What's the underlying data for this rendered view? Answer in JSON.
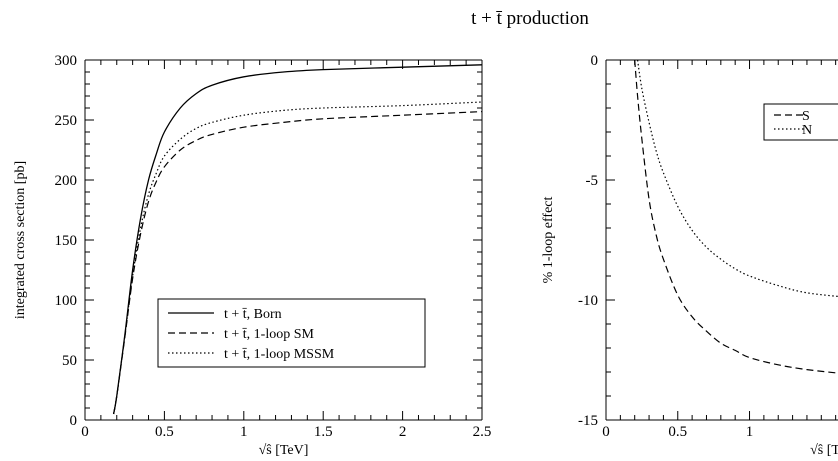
{
  "title": "t + t̄  production",
  "chart_data": [
    {
      "type": "line",
      "xlabel": "√ŝ [TeV]",
      "ylabel": "integrated cross section [pb]",
      "xlim": [
        0,
        2.5
      ],
      "ylim": [
        0,
        300
      ],
      "xticks": [
        "0",
        "0.5",
        "1",
        "1.5",
        "2",
        "2.5"
      ],
      "yticks": [
        "0",
        "50",
        "100",
        "150",
        "200",
        "250",
        "300"
      ],
      "legend_position": "lower-right",
      "series": [
        {
          "name": "t + t̄, Born",
          "style": "solid",
          "x": [
            0.18,
            0.2,
            0.25,
            0.3,
            0.35,
            0.4,
            0.45,
            0.5,
            0.6,
            0.7,
            0.8,
            1.0,
            1.25,
            1.5,
            2.0,
            2.5
          ],
          "y": [
            5,
            20,
            70,
            125,
            168,
            200,
            222,
            240,
            260,
            272,
            279,
            286,
            290,
            292,
            294,
            296
          ]
        },
        {
          "name": "t + t̄, 1-loop SM",
          "style": "dashed",
          "x": [
            0.18,
            0.2,
            0.25,
            0.3,
            0.35,
            0.4,
            0.45,
            0.5,
            0.6,
            0.7,
            0.8,
            1.0,
            1.25,
            1.5,
            2.0,
            2.5
          ],
          "y": [
            5,
            20,
            68,
            118,
            155,
            182,
            199,
            211,
            225,
            233,
            238,
            244,
            248,
            251,
            254,
            257
          ]
        },
        {
          "name": "t + t̄,  1-loop MSSM",
          "style": "dotted",
          "x": [
            0.18,
            0.2,
            0.25,
            0.3,
            0.35,
            0.4,
            0.45,
            0.5,
            0.6,
            0.7,
            0.8,
            1.0,
            1.25,
            1.5,
            2.0,
            2.5
          ],
          "y": [
            5,
            20,
            69,
            120,
            160,
            188,
            206,
            220,
            234,
            243,
            248,
            254,
            258,
            260,
            262,
            265
          ]
        }
      ]
    },
    {
      "type": "line",
      "xlabel": "√ŝ [T",
      "ylabel": "% 1-loop effect",
      "xlim": [
        0,
        1.7
      ],
      "ylim": [
        -15,
        0
      ],
      "xticks": [
        "0",
        "0.5",
        "1"
      ],
      "yticks": [
        "0",
        "-5",
        "-10",
        "-15"
      ],
      "legend_position": "top-right",
      "legend_labels": [
        "S",
        "N"
      ],
      "series": [
        {
          "name": "S",
          "style": "dashed",
          "x": [
            0.2,
            0.22,
            0.25,
            0.3,
            0.35,
            0.4,
            0.5,
            0.6,
            0.7,
            0.8,
            0.9,
            1.0,
            1.2,
            1.4,
            1.7
          ],
          "y": [
            0,
            -1.5,
            -3.3,
            -5.8,
            -7.3,
            -8.3,
            -9.8,
            -10.7,
            -11.3,
            -11.8,
            -12.1,
            -12.4,
            -12.7,
            -12.9,
            -13.1
          ]
        },
        {
          "name": "N",
          "style": "dotted",
          "x": [
            0.22,
            0.25,
            0.3,
            0.35,
            0.4,
            0.5,
            0.6,
            0.7,
            0.8,
            0.9,
            1.0,
            1.2,
            1.4,
            1.7
          ],
          "y": [
            0,
            -1.2,
            -2.6,
            -3.8,
            -4.7,
            -6.1,
            -7.1,
            -7.8,
            -8.3,
            -8.7,
            -9.0,
            -9.4,
            -9.7,
            -9.9
          ]
        }
      ]
    }
  ]
}
